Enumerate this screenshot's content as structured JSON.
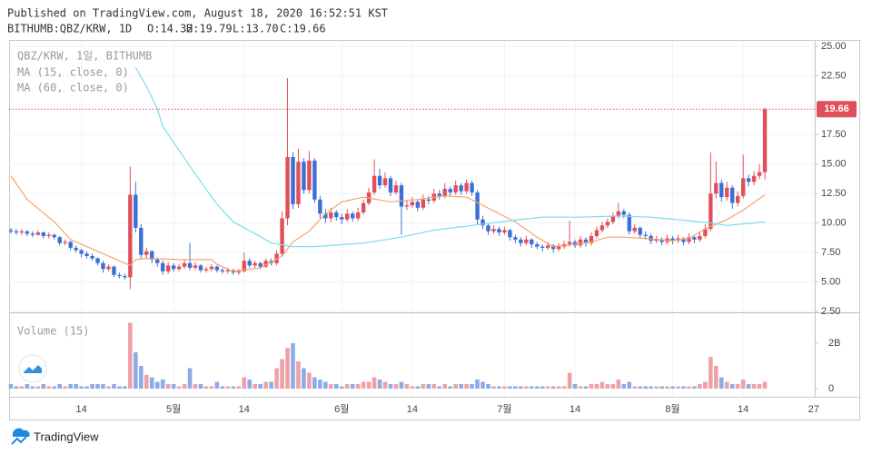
{
  "header": {
    "published": "Published on TradingView.com, August 18, 2020 16:52:51 KST",
    "symbol": "BITHUMB:QBZ/KRW, 1D",
    "ohlc": [
      "O:14.32",
      "H:19.79",
      "L:13.70",
      "C:19.66"
    ]
  },
  "logo": "TradingView",
  "chart_data": [
    {
      "type": "candlestick",
      "title": "QBZ/KRW, 1일, BITHUMB",
      "up_color": "#e0505a",
      "down_color": "#3d6fd6",
      "grid": true,
      "xlim": [
        -0.33,
        148.2
      ],
      "ylim": [
        2.5,
        25.46
      ],
      "yticks": [
        {
          "value": 2.5,
          "label": "2.50"
        },
        {
          "value": 5,
          "label": "5.00"
        },
        {
          "value": 7.5,
          "label": "7.50"
        },
        {
          "value": 10,
          "label": "10.00"
        },
        {
          "value": 12.5,
          "label": "12.50"
        },
        {
          "value": 15,
          "label": "15.00"
        },
        {
          "value": 17.5,
          "label": "17.50"
        },
        {
          "value": 20,
          "label": "20.00"
        },
        {
          "value": 22.5,
          "label": "22.50"
        },
        {
          "value": 25,
          "label": "25.00"
        }
      ],
      "candles": [
        [
          9.4,
          9.6,
          9.1,
          9.3
        ],
        [
          9.3,
          9.5,
          9.0,
          9.2
        ],
        [
          9.2,
          9.5,
          9.0,
          9.3
        ],
        [
          9.3,
          9.4,
          8.9,
          9.1
        ],
        [
          9.1,
          9.3,
          8.8,
          9.0
        ],
        [
          9.0,
          9.4,
          8.9,
          9.2
        ],
        [
          9.2,
          9.3,
          8.7,
          8.9
        ],
        [
          8.9,
          9.2,
          8.7,
          9.0
        ],
        [
          9.0,
          9.1,
          8.6,
          8.8
        ],
        [
          8.8,
          8.9,
          8.1,
          8.3
        ],
        [
          8.3,
          8.6,
          8.1,
          8.4
        ],
        [
          8.4,
          8.5,
          7.7,
          7.9
        ],
        [
          7.9,
          8.1,
          7.5,
          7.7
        ],
        [
          7.7,
          7.8,
          7.1,
          7.4
        ],
        [
          7.4,
          7.6,
          7.0,
          7.2
        ],
        [
          7.2,
          7.4,
          6.8,
          7.0
        ],
        [
          7.0,
          7.1,
          6.4,
          6.6
        ],
        [
          6.6,
          6.8,
          5.8,
          6.1
        ],
        [
          6.1,
          6.5,
          5.9,
          6.3
        ],
        [
          6.3,
          6.4,
          5.4,
          5.6
        ],
        [
          5.6,
          5.8,
          5.3,
          5.5
        ],
        [
          5.5,
          5.7,
          5.2,
          5.4
        ],
        [
          5.4,
          14.8,
          4.4,
          12.4
        ],
        [
          12.4,
          13.5,
          9.2,
          9.6
        ],
        [
          9.6,
          9.9,
          7.0,
          7.3
        ],
        [
          7.3,
          7.9,
          7.0,
          7.6
        ],
        [
          7.6,
          7.7,
          6.6,
          6.9
        ],
        [
          6.9,
          7.1,
          6.3,
          6.6
        ],
        [
          6.6,
          6.8,
          5.6,
          5.9
        ],
        [
          5.9,
          6.7,
          5.7,
          6.4
        ],
        [
          6.4,
          6.6,
          5.9,
          6.1
        ],
        [
          6.1,
          6.5,
          5.9,
          6.3
        ],
        [
          6.3,
          6.9,
          6.1,
          6.6
        ],
        [
          6.6,
          8.3,
          6.0,
          6.2
        ],
        [
          6.2,
          6.7,
          6.0,
          6.4
        ],
        [
          6.4,
          6.5,
          5.8,
          6.0
        ],
        [
          6.0,
          6.3,
          5.8,
          6.1
        ],
        [
          6.1,
          6.5,
          5.9,
          6.3
        ],
        [
          6.3,
          6.4,
          5.8,
          6.0
        ],
        [
          6.0,
          6.2,
          5.7,
          5.9
        ],
        [
          5.9,
          6.2,
          5.7,
          6.0
        ],
        [
          6.0,
          6.1,
          5.6,
          5.8
        ],
        [
          5.8,
          6.1,
          5.6,
          5.9
        ],
        [
          5.9,
          7.5,
          5.8,
          6.8
        ],
        [
          6.8,
          7.0,
          6.2,
          6.4
        ],
        [
          6.4,
          6.8,
          6.2,
          6.6
        ],
        [
          6.6,
          6.7,
          6.1,
          6.3
        ],
        [
          6.3,
          7.0,
          6.2,
          6.8
        ],
        [
          6.8,
          7.0,
          6.4,
          6.6
        ],
        [
          6.6,
          7.7,
          6.4,
          7.4
        ],
        [
          7.4,
          11.0,
          7.2,
          10.4
        ],
        [
          10.4,
          22.3,
          9.8,
          15.6
        ],
        [
          15.6,
          16.0,
          11.2,
          11.6
        ],
        [
          11.6,
          16.3,
          11.3,
          15.2
        ],
        [
          15.2,
          15.5,
          12.5,
          12.8
        ],
        [
          12.8,
          16.1,
          12.5,
          15.3
        ],
        [
          15.3,
          15.5,
          11.7,
          12.0
        ],
        [
          12.0,
          12.3,
          10.4,
          10.8
        ],
        [
          10.8,
          11.2,
          10.0,
          10.4
        ],
        [
          10.4,
          11.3,
          10.1,
          10.9
        ],
        [
          10.9,
          11.1,
          10.2,
          10.5
        ],
        [
          10.5,
          10.8,
          9.9,
          10.3
        ],
        [
          10.3,
          11.2,
          10.1,
          10.8
        ],
        [
          10.8,
          11.0,
          10.1,
          10.4
        ],
        [
          10.4,
          11.3,
          10.2,
          10.9
        ],
        [
          10.9,
          12.0,
          10.7,
          11.7
        ],
        [
          11.7,
          13.0,
          11.5,
          12.6
        ],
        [
          12.6,
          15.4,
          12.4,
          14.0
        ],
        [
          14.0,
          14.6,
          12.9,
          13.2
        ],
        [
          13.2,
          14.3,
          13.0,
          13.8
        ],
        [
          13.8,
          14.0,
          12.3,
          12.6
        ],
        [
          12.6,
          13.6,
          12.4,
          13.2
        ],
        [
          13.2,
          13.4,
          9.0,
          11.4
        ],
        [
          11.4,
          11.9,
          11.1,
          11.5
        ],
        [
          11.5,
          12.2,
          11.3,
          11.8
        ],
        [
          11.8,
          12.0,
          11.0,
          11.3
        ],
        [
          11.3,
          12.4,
          11.1,
          12.0
        ],
        [
          12.0,
          12.3,
          11.6,
          11.9
        ],
        [
          11.9,
          12.9,
          11.7,
          12.5
        ],
        [
          12.5,
          12.8,
          12.0,
          12.3
        ],
        [
          12.3,
          13.4,
          12.1,
          12.9
        ],
        [
          12.9,
          13.1,
          12.3,
          12.6
        ],
        [
          12.6,
          13.6,
          12.4,
          13.2
        ],
        [
          13.2,
          13.4,
          12.4,
          12.7
        ],
        [
          12.7,
          13.7,
          12.5,
          13.4
        ],
        [
          13.4,
          13.6,
          12.3,
          12.6
        ],
        [
          12.6,
          12.8,
          9.9,
          10.3
        ],
        [
          10.3,
          10.6,
          9.5,
          9.8
        ],
        [
          9.8,
          10.0,
          9.0,
          9.3
        ],
        [
          9.3,
          9.8,
          9.1,
          9.5
        ],
        [
          9.5,
          9.7,
          8.9,
          9.2
        ],
        [
          9.2,
          9.7,
          9.0,
          9.4
        ],
        [
          9.4,
          9.5,
          8.5,
          8.8
        ],
        [
          8.8,
          9.0,
          8.3,
          8.6
        ],
        [
          8.6,
          8.8,
          8.0,
          8.3
        ],
        [
          8.3,
          8.9,
          8.1,
          8.6
        ],
        [
          8.6,
          8.7,
          7.9,
          8.2
        ],
        [
          8.2,
          8.4,
          7.8,
          8.0
        ],
        [
          8.0,
          8.2,
          7.6,
          7.9
        ],
        [
          7.9,
          8.4,
          7.7,
          8.1
        ],
        [
          8.1,
          8.2,
          7.5,
          7.8
        ],
        [
          7.8,
          8.3,
          7.6,
          8.0
        ],
        [
          8.0,
          8.5,
          7.8,
          8.2
        ],
        [
          8.2,
          10.2,
          8.0,
          8.4
        ],
        [
          8.4,
          8.6,
          7.9,
          8.1
        ],
        [
          8.1,
          8.9,
          7.9,
          8.6
        ],
        [
          8.6,
          8.8,
          8.0,
          8.3
        ],
        [
          8.3,
          9.2,
          8.1,
          8.9
        ],
        [
          8.9,
          9.7,
          8.7,
          9.4
        ],
        [
          9.4,
          10.1,
          9.2,
          9.8
        ],
        [
          9.8,
          10.4,
          9.6,
          10.1
        ],
        [
          10.1,
          10.9,
          9.9,
          10.6
        ],
        [
          10.6,
          11.7,
          10.4,
          11.0
        ],
        [
          11.0,
          11.2,
          10.4,
          10.7
        ],
        [
          10.7,
          10.9,
          9.0,
          9.3
        ],
        [
          9.3,
          9.9,
          9.1,
          9.6
        ],
        [
          9.6,
          9.7,
          8.7,
          9.0
        ],
        [
          9.0,
          9.3,
          8.6,
          8.9
        ],
        [
          8.9,
          9.1,
          8.2,
          8.5
        ],
        [
          8.5,
          8.9,
          8.3,
          8.6
        ],
        [
          8.6,
          8.8,
          8.1,
          8.4
        ],
        [
          8.4,
          9.0,
          8.2,
          8.7
        ],
        [
          8.7,
          8.9,
          8.2,
          8.5
        ],
        [
          8.5,
          9.0,
          8.3,
          8.7
        ],
        [
          8.7,
          8.8,
          8.1,
          8.4
        ],
        [
          8.4,
          9.1,
          8.2,
          8.8
        ],
        [
          8.8,
          8.9,
          8.3,
          8.6
        ],
        [
          8.6,
          9.2,
          8.4,
          8.9
        ],
        [
          8.9,
          9.9,
          8.7,
          9.5
        ],
        [
          9.5,
          16.0,
          9.3,
          12.5
        ],
        [
          12.5,
          15.2,
          12.1,
          13.4
        ],
        [
          13.4,
          13.7,
          11.8,
          12.2
        ],
        [
          12.2,
          13.5,
          11.9,
          13.0
        ],
        [
          13.0,
          13.2,
          11.2,
          11.7
        ],
        [
          11.7,
          12.7,
          11.4,
          12.3
        ],
        [
          12.3,
          15.8,
          12.1,
          13.8
        ],
        [
          13.8,
          14.1,
          13.1,
          13.5
        ],
        [
          13.5,
          14.4,
          13.2,
          14.0
        ],
        [
          14.0,
          15.0,
          13.7,
          14.32
        ],
        [
          14.32,
          19.79,
          13.7,
          19.66
        ]
      ],
      "series": [
        {
          "name": "MA (15, close, 0)",
          "color": "#f6a36e",
          "x": [
            0,
            3,
            8,
            11,
            15,
            20,
            22,
            23,
            25,
            31,
            37,
            38,
            41,
            46,
            50,
            52,
            55,
            58,
            61,
            65,
            70,
            75,
            80,
            84,
            87,
            90,
            93,
            97,
            100,
            104,
            107,
            110,
            113,
            117,
            122,
            125,
            128,
            132,
            135,
            139
          ],
          "values": [
            14.0,
            12.0,
            10.1,
            8.6,
            7.8,
            6.8,
            6.4,
            6.9,
            7.0,
            6.9,
            6.9,
            6.5,
            5.9,
            6.2,
            7.2,
            8.4,
            9.3,
            10.8,
            11.8,
            12.2,
            11.8,
            12.0,
            12.3,
            12.2,
            11.5,
            10.8,
            10.1,
            8.8,
            8.0,
            8.2,
            8.4,
            8.8,
            8.8,
            8.7,
            8.5,
            8.7,
            9.5,
            10.3,
            11.1,
            12.4
          ]
        },
        {
          "name": "MA (60, close, 0)",
          "color": "#7ddcec",
          "x": [
            23,
            25,
            27,
            28,
            32,
            35,
            38,
            41,
            45,
            48,
            52,
            56,
            65,
            72,
            78,
            85,
            92,
            98,
            105,
            112,
            118,
            125,
            129,
            132,
            139
          ],
          "values": [
            23.2,
            21.6,
            19.7,
            18.2,
            15.5,
            13.5,
            11.6,
            10.1,
            9.1,
            8.3,
            8.0,
            8.0,
            8.3,
            8.8,
            9.4,
            9.8,
            10.2,
            10.5,
            10.5,
            10.6,
            10.5,
            10.2,
            10.0,
            9.8,
            10.1
          ]
        }
      ]
    },
    {
      "type": "bar",
      "title": "Volume (15)",
      "up_color": "#eda2a7",
      "down_color": "#8eabe6",
      "xlim": [
        -0.33,
        148.2
      ],
      "ylim": [
        -0.32,
        3.24
      ],
      "yticks": [
        0,
        {
          "value": 2,
          "label": "2B"
        }
      ],
      "xticks": [
        {
          "value": 13,
          "label": "14"
        },
        {
          "value": 30,
          "label": "5월"
        },
        {
          "value": 43,
          "label": "14"
        },
        {
          "value": 61,
          "label": "6월"
        },
        {
          "value": 74,
          "label": "14"
        },
        {
          "value": 91,
          "label": "7월"
        },
        {
          "value": 104,
          "label": "14"
        },
        {
          "value": 122,
          "label": "8월"
        },
        {
          "value": 135,
          "label": "14"
        },
        {
          "value": 148,
          "label": "27"
        }
      ],
      "values": [
        0.2,
        0.1,
        0.1,
        0.2,
        0.1,
        0.1,
        0.2,
        0.1,
        0.1,
        0.2,
        0.1,
        0.2,
        0.2,
        0.1,
        0.1,
        0.2,
        0.2,
        0.2,
        0.1,
        0.2,
        0.1,
        0.1,
        2.9,
        1.6,
        1.0,
        0.6,
        0.5,
        0.3,
        0.4,
        0.2,
        0.2,
        0.1,
        0.2,
        0.9,
        0.2,
        0.2,
        0.1,
        0.1,
        0.3,
        0.1,
        0.1,
        0.1,
        0.1,
        0.5,
        0.4,
        0.2,
        0.2,
        0.3,
        0.3,
        0.9,
        1.3,
        1.8,
        2.0,
        1.2,
        0.9,
        0.7,
        0.5,
        0.4,
        0.3,
        0.2,
        0.2,
        0.1,
        0.2,
        0.2,
        0.2,
        0.3,
        0.3,
        0.5,
        0.4,
        0.3,
        0.2,
        0.2,
        0.3,
        0.2,
        0.1,
        0.1,
        0.2,
        0.2,
        0.2,
        0.1,
        0.2,
        0.1,
        0.2,
        0.2,
        0.2,
        0.2,
        0.4,
        0.3,
        0.2,
        0.1,
        0.1,
        0.1,
        0.1,
        0.1,
        0.1,
        0.1,
        0.1,
        0.1,
        0.1,
        0.1,
        0.1,
        0.1,
        0.1,
        0.7,
        0.2,
        0.1,
        0.1,
        0.2,
        0.2,
        0.3,
        0.2,
        0.2,
        0.4,
        0.2,
        0.3,
        0.1,
        0.1,
        0.1,
        0.1,
        0.1,
        0.1,
        0.1,
        0.1,
        0.1,
        0.1,
        0.1,
        0.1,
        0.2,
        0.3,
        1.4,
        1.0,
        0.5,
        0.3,
        0.2,
        0.2,
        0.4,
        0.2,
        0.2,
        0.2,
        0.3
      ]
    }
  ]
}
